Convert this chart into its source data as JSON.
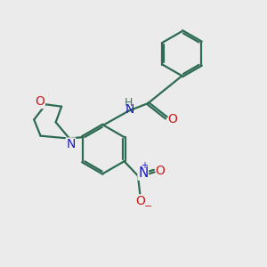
{
  "bg_color": "#ebebeb",
  "bond_color": "#2d6b52",
  "N_color": "#1a1acc",
  "O_color": "#cc1a1a",
  "H_color": "#3a7a6a",
  "line_width": 1.6,
  "font_size": 10,
  "fig_w": 3.0,
  "fig_h": 3.0,
  "dpi": 100,
  "xlim": [
    0,
    10
  ],
  "ylim": [
    0,
    10
  ]
}
